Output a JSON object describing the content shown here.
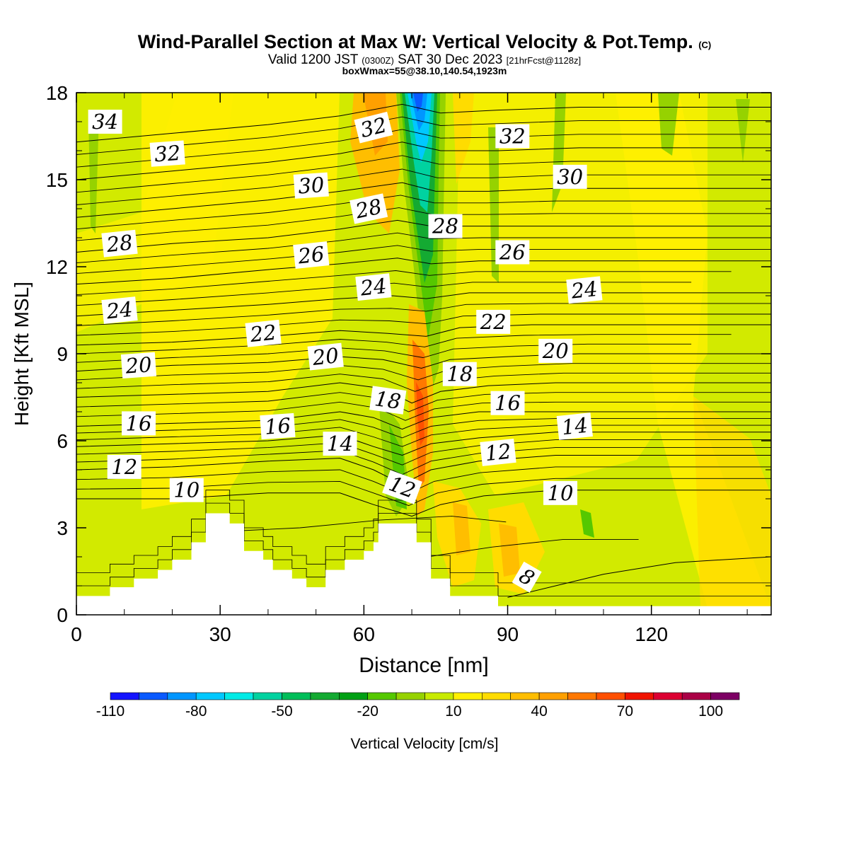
{
  "header": {
    "title_main": "Wind-Parallel Section at Max W: Vertical Velocity & Pot.Temp.",
    "title_mark": "(C)",
    "valid_prefix": "Valid 1200 JST",
    "valid_zulu": "(0300Z)",
    "valid_date": "SAT 30 Dec 2023",
    "valid_fcst": "[21hrFcst@1128z]",
    "box_info": "boxWmax=55@38.10,140.54,1923m"
  },
  "chart_data": {
    "type": "heatmap",
    "xlabel": "Distance [nm]",
    "ylabel": "Height [Kft MSL]",
    "xlim": [
      0,
      145
    ],
    "ylim": [
      0,
      18
    ],
    "x_ticks": [
      0,
      30,
      60,
      90,
      120
    ],
    "y_ticks": [
      0,
      3,
      6,
      9,
      12,
      15,
      18
    ],
    "grid": false,
    "colorbar": {
      "label": "Vertical Velocity [cm/s]",
      "placement": "bottom",
      "tick_labels": [
        -110,
        -80,
        -50,
        -20,
        10,
        40,
        70,
        100
      ],
      "bin_edges": [
        -110,
        -100,
        -90,
        -80,
        -70,
        -60,
        -50,
        -40,
        -30,
        -20,
        -10,
        0,
        10,
        20,
        30,
        40,
        50,
        60,
        70,
        80,
        90,
        100,
        110
      ],
      "colors": [
        "#1414ff",
        "#0a5aff",
        "#0096ff",
        "#00c8ff",
        "#00ebe6",
        "#00d2a0",
        "#00be5a",
        "#14aa32",
        "#00a014",
        "#55c800",
        "#96d200",
        "#c8eb00",
        "#fff000",
        "#ffdc00",
        "#ffbe00",
        "#ffa000",
        "#ff7800",
        "#ff5000",
        "#f01400",
        "#dc0032",
        "#aa0046",
        "#7d0064",
        "#5a1496"
      ]
    },
    "terrain_profile_kft": [
      [
        0,
        0.65
      ],
      [
        7,
        0.65
      ],
      [
        7,
        0.95
      ],
      [
        12,
        0.95
      ],
      [
        12,
        1.25
      ],
      [
        17,
        1.25
      ],
      [
        17,
        1.55
      ],
      [
        20,
        1.55
      ],
      [
        20,
        1.9
      ],
      [
        24,
        1.9
      ],
      [
        24,
        2.5
      ],
      [
        27,
        2.5
      ],
      [
        27,
        3.5
      ],
      [
        32,
        3.5
      ],
      [
        32,
        3.15
      ],
      [
        35,
        3.15
      ],
      [
        35,
        2.2
      ],
      [
        39,
        2.2
      ],
      [
        39,
        1.9
      ],
      [
        41,
        1.9
      ],
      [
        41,
        1.55
      ],
      [
        45,
        1.55
      ],
      [
        45,
        1.25
      ],
      [
        48,
        1.25
      ],
      [
        48,
        0.95
      ],
      [
        52,
        0.95
      ],
      [
        52,
        1.55
      ],
      [
        56,
        1.55
      ],
      [
        56,
        1.9
      ],
      [
        60,
        1.9
      ],
      [
        60,
        2.2
      ],
      [
        62,
        2.2
      ],
      [
        62,
        2.5
      ],
      [
        63,
        2.5
      ],
      [
        63,
        3.15
      ],
      [
        71,
        3.15
      ],
      [
        71,
        2.5
      ],
      [
        74,
        2.5
      ],
      [
        74,
        1.25
      ],
      [
        78,
        1.25
      ],
      [
        78,
        0.65
      ],
      [
        88,
        0.65
      ],
      [
        88,
        0.3
      ],
      [
        145,
        0.3
      ]
    ],
    "theta_contours": [
      {
        "label": "8",
        "points": [
          [
            90,
            0.6
          ],
          [
            100,
            1.0
          ],
          [
            110,
            1.4
          ],
          [
            125,
            1.8
          ],
          [
            145,
            2.0
          ]
        ]
      },
      {
        "label": "10",
        "points": [
          [
            0,
            4.0
          ],
          [
            20,
            4.0
          ],
          [
            40,
            4.2
          ],
          [
            55,
            4.2
          ],
          [
            62,
            3.8
          ],
          [
            70,
            3.4
          ],
          [
            76,
            3.8
          ],
          [
            85,
            4.1
          ],
          [
            100,
            4.3
          ],
          [
            120,
            4.3
          ],
          [
            145,
            4.3
          ]
        ]
      },
      {
        "label": "12",
        "points": [
          [
            0,
            5.0
          ],
          [
            20,
            5.1
          ],
          [
            40,
            5.3
          ],
          [
            55,
            5.4
          ],
          [
            62,
            5.0
          ],
          [
            68,
            4.5
          ],
          [
            74,
            5.0
          ],
          [
            84,
            5.3
          ],
          [
            100,
            5.5
          ],
          [
            120,
            5.5
          ],
          [
            145,
            5.5
          ]
        ]
      },
      {
        "label": "14",
        "points": [
          [
            0,
            5.8
          ],
          [
            20,
            5.9
          ],
          [
            40,
            6.0
          ],
          [
            55,
            6.2
          ],
          [
            62,
            5.8
          ],
          [
            68,
            5.5
          ],
          [
            74,
            5.9
          ],
          [
            84,
            6.1
          ],
          [
            100,
            6.3
          ],
          [
            120,
            6.3
          ],
          [
            145,
            6.3
          ]
        ]
      },
      {
        "label": "16",
        "points": [
          [
            0,
            6.5
          ],
          [
            20,
            6.6
          ],
          [
            40,
            6.7
          ],
          [
            55,
            7.0
          ],
          [
            62,
            6.8
          ],
          [
            68,
            6.4
          ],
          [
            74,
            6.8
          ],
          [
            84,
            7.0
          ],
          [
            100,
            7.0
          ],
          [
            120,
            7.0
          ],
          [
            145,
            7.0
          ]
        ]
      },
      {
        "label": "18",
        "points": [
          [
            0,
            7.5
          ],
          [
            20,
            7.6
          ],
          [
            40,
            7.7
          ],
          [
            55,
            8.0
          ],
          [
            64,
            7.8
          ],
          [
            70,
            7.3
          ],
          [
            76,
            7.7
          ],
          [
            86,
            7.9
          ],
          [
            100,
            8.0
          ],
          [
            120,
            8.0
          ],
          [
            145,
            8.0
          ]
        ]
      },
      {
        "label": "20",
        "points": [
          [
            0,
            8.4
          ],
          [
            20,
            8.6
          ],
          [
            40,
            8.7
          ],
          [
            55,
            8.9
          ],
          [
            64,
            8.8
          ],
          [
            72,
            8.5
          ],
          [
            78,
            8.8
          ],
          [
            90,
            8.9
          ],
          [
            105,
            9.0
          ],
          [
            120,
            9.0
          ],
          [
            145,
            9.0
          ]
        ]
      },
      {
        "label": "22",
        "points": [
          [
            0,
            9.3
          ],
          [
            20,
            9.4
          ],
          [
            40,
            9.6
          ],
          [
            55,
            9.8
          ],
          [
            65,
            9.7
          ],
          [
            73,
            9.6
          ],
          [
            80,
            9.9
          ],
          [
            95,
            10.0
          ],
          [
            110,
            10.0
          ],
          [
            145,
            10.0
          ]
        ]
      },
      {
        "label": "24",
        "points": [
          [
            0,
            10.3
          ],
          [
            20,
            10.5
          ],
          [
            40,
            10.7
          ],
          [
            55,
            10.9
          ],
          [
            66,
            11.0
          ],
          [
            73,
            10.9
          ],
          [
            82,
            11.1
          ],
          [
            100,
            11.1
          ],
          [
            120,
            11.1
          ],
          [
            145,
            11.1
          ]
        ]
      },
      {
        "label": "26",
        "points": [
          [
            0,
            11.4
          ],
          [
            20,
            11.6
          ],
          [
            40,
            11.9
          ],
          [
            55,
            12.1
          ],
          [
            67,
            12.3
          ],
          [
            74,
            12.1
          ],
          [
            84,
            12.2
          ],
          [
            100,
            12.2
          ],
          [
            145,
            12.2
          ]
        ]
      },
      {
        "label": "28",
        "points": [
          [
            0,
            12.5
          ],
          [
            20,
            12.8
          ],
          [
            40,
            13.0
          ],
          [
            55,
            13.3
          ],
          [
            67,
            13.6
          ],
          [
            74,
            13.4
          ],
          [
            85,
            13.4
          ],
          [
            100,
            13.4
          ],
          [
            145,
            13.4
          ]
        ]
      },
      {
        "label": "30",
        "points": [
          [
            0,
            13.7
          ],
          [
            20,
            14.0
          ],
          [
            40,
            14.3
          ],
          [
            55,
            14.6
          ],
          [
            68,
            14.9
          ],
          [
            75,
            14.6
          ],
          [
            86,
            14.6
          ],
          [
            100,
            14.7
          ],
          [
            145,
            14.7
          ]
        ]
      },
      {
        "label": "32",
        "points": [
          [
            0,
            15.0
          ],
          [
            20,
            15.3
          ],
          [
            40,
            15.6
          ],
          [
            55,
            15.9
          ],
          [
            68,
            16.3
          ],
          [
            76,
            16.0
          ],
          [
            88,
            16.0
          ],
          [
            105,
            16.1
          ],
          [
            145,
            16.1
          ]
        ]
      },
      {
        "label": "34",
        "points": [
          [
            0,
            16.3
          ],
          [
            20,
            16.6
          ],
          [
            40,
            16.9
          ],
          [
            55,
            17.2
          ],
          [
            68,
            17.6
          ],
          [
            76,
            17.3
          ],
          [
            88,
            17.4
          ],
          [
            105,
            17.5
          ],
          [
            145,
            17.5
          ]
        ]
      }
    ],
    "contour_labels": [
      {
        "text": "34",
        "x": 6,
        "y": 17.0,
        "angle": 0
      },
      {
        "text": "32",
        "x": 19,
        "y": 15.9,
        "angle": -4
      },
      {
        "text": "32",
        "x": 62,
        "y": 16.8,
        "angle": -14
      },
      {
        "text": "32",
        "x": 91,
        "y": 16.5,
        "angle": 0
      },
      {
        "text": "30",
        "x": 49,
        "y": 14.8,
        "angle": -4
      },
      {
        "text": "30",
        "x": 103,
        "y": 15.1,
        "angle": 0
      },
      {
        "text": "28",
        "x": 9,
        "y": 12.8,
        "angle": -6
      },
      {
        "text": "28",
        "x": 61,
        "y": 14.0,
        "angle": -12
      },
      {
        "text": "28",
        "x": 77,
        "y": 13.4,
        "angle": 0
      },
      {
        "text": "26",
        "x": 49,
        "y": 12.4,
        "angle": -6
      },
      {
        "text": "26",
        "x": 91,
        "y": 12.5,
        "angle": 0
      },
      {
        "text": "24",
        "x": 9,
        "y": 10.5,
        "angle": -6
      },
      {
        "text": "24",
        "x": 62,
        "y": 11.3,
        "angle": -6
      },
      {
        "text": "24",
        "x": 106,
        "y": 11.2,
        "angle": -6
      },
      {
        "text": "22",
        "x": 39,
        "y": 9.7,
        "angle": -6
      },
      {
        "text": "22",
        "x": 87,
        "y": 10.1,
        "angle": 0
      },
      {
        "text": "20",
        "x": 13,
        "y": 8.6,
        "angle": -4
      },
      {
        "text": "20",
        "x": 52,
        "y": 8.9,
        "angle": -6
      },
      {
        "text": "20",
        "x": 100,
        "y": 9.1,
        "angle": 0
      },
      {
        "text": "18",
        "x": 65,
        "y": 7.4,
        "angle": 8
      },
      {
        "text": "18",
        "x": 80,
        "y": 8.3,
        "angle": 0
      },
      {
        "text": "16",
        "x": 13,
        "y": 6.6,
        "angle": 0
      },
      {
        "text": "16",
        "x": 42,
        "y": 6.5,
        "angle": -4
      },
      {
        "text": "16",
        "x": 90,
        "y": 7.3,
        "angle": 0
      },
      {
        "text": "14",
        "x": 55,
        "y": 5.9,
        "angle": 0
      },
      {
        "text": "14",
        "x": 104,
        "y": 6.5,
        "angle": -6
      },
      {
        "text": "12",
        "x": 10,
        "y": 5.1,
        "angle": 0
      },
      {
        "text": "12",
        "x": 68,
        "y": 4.4,
        "angle": 20
      },
      {
        "text": "12",
        "x": 88,
        "y": 5.6,
        "angle": -6
      },
      {
        "text": "10",
        "x": 23,
        "y": 4.3,
        "angle": 0
      },
      {
        "text": "10",
        "x": 101,
        "y": 4.2,
        "angle": 0
      },
      {
        "text": "8",
        "x": 94,
        "y": 1.3,
        "angle": 30
      }
    ]
  }
}
